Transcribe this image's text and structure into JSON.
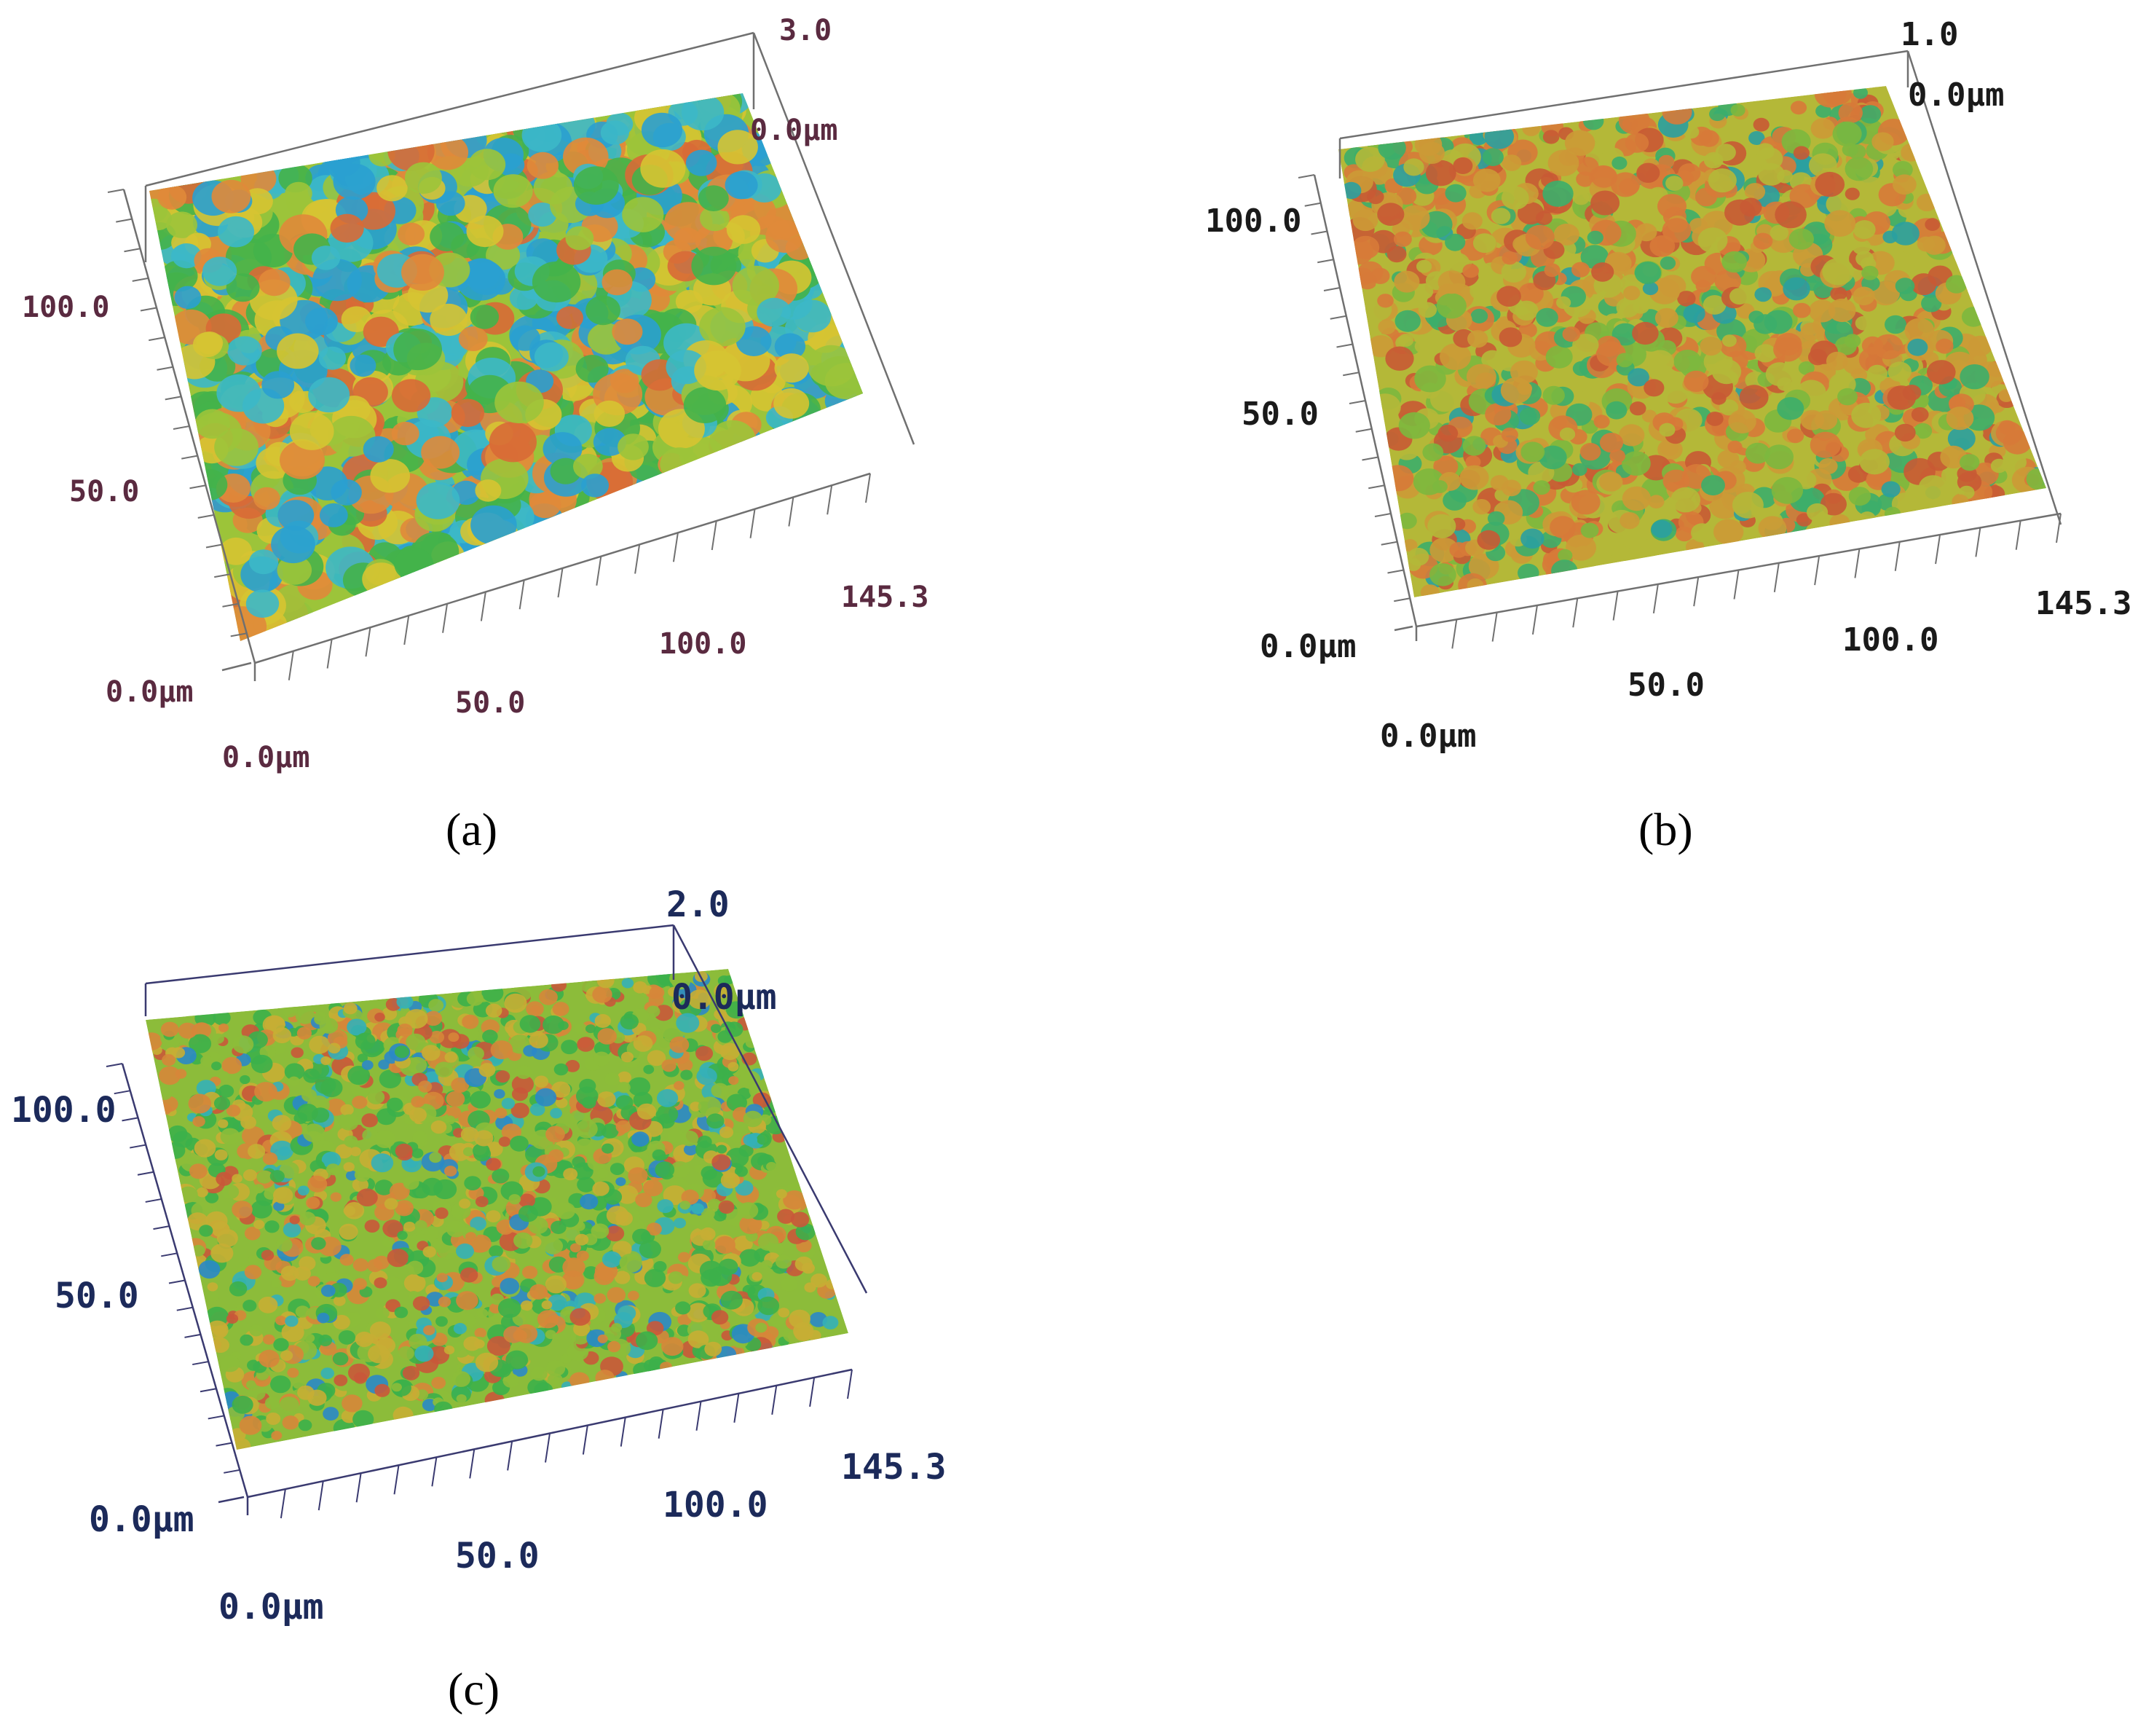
{
  "panels": [
    {
      "id": "a",
      "caption": "(a)",
      "z_max": "3.0",
      "z_min": "0.0µm",
      "y_origin": "0.0µm",
      "y_ticks": [
        "50.0",
        "100.0"
      ],
      "x_origin": "0.0µm",
      "x_ticks": [
        "50.0",
        "100.0",
        "145.3"
      ],
      "label_color": "#5a2a40",
      "palette": [
        "#2aa0d0",
        "#3cb8c8",
        "#44b24a",
        "#9cc43a",
        "#d6c432",
        "#e08a3a",
        "#d86a36"
      ],
      "weights": [
        0.18,
        0.12,
        0.2,
        0.14,
        0.16,
        0.14,
        0.06
      ]
    },
    {
      "id": "b",
      "caption": "(b)",
      "z_max": "1.0",
      "z_min": "0.0µm",
      "y_origin": "0.0µm",
      "y_ticks": [
        "50.0",
        "100.0"
      ],
      "x_origin": "0.0µm",
      "x_ticks": [
        "50.0",
        "100.0",
        "145.3"
      ],
      "label_color": "#1a1a1a",
      "palette": [
        "#2aa0a0",
        "#3cae6a",
        "#7cb83e",
        "#b4b838",
        "#cc9a36",
        "#d77a38",
        "#c85a34"
      ],
      "weights": [
        0.04,
        0.12,
        0.12,
        0.18,
        0.22,
        0.2,
        0.12
      ]
    },
    {
      "id": "c",
      "caption": "(c)",
      "z_max": "2.0",
      "z_min": "0.0µm",
      "y_origin": "0.0µm",
      "y_ticks": [
        "50.0",
        "100.0"
      ],
      "x_origin": "0.0µm",
      "x_ticks": [
        "50.0",
        "100.0",
        "145.3"
      ],
      "label_color": "#1c2a5a",
      "palette": [
        "#2a88c8",
        "#34b0b8",
        "#3cb04a",
        "#8cbc3a",
        "#c6ae34",
        "#d6863a",
        "#c9583a"
      ],
      "weights": [
        0.05,
        0.07,
        0.24,
        0.22,
        0.18,
        0.16,
        0.08
      ]
    }
  ]
}
